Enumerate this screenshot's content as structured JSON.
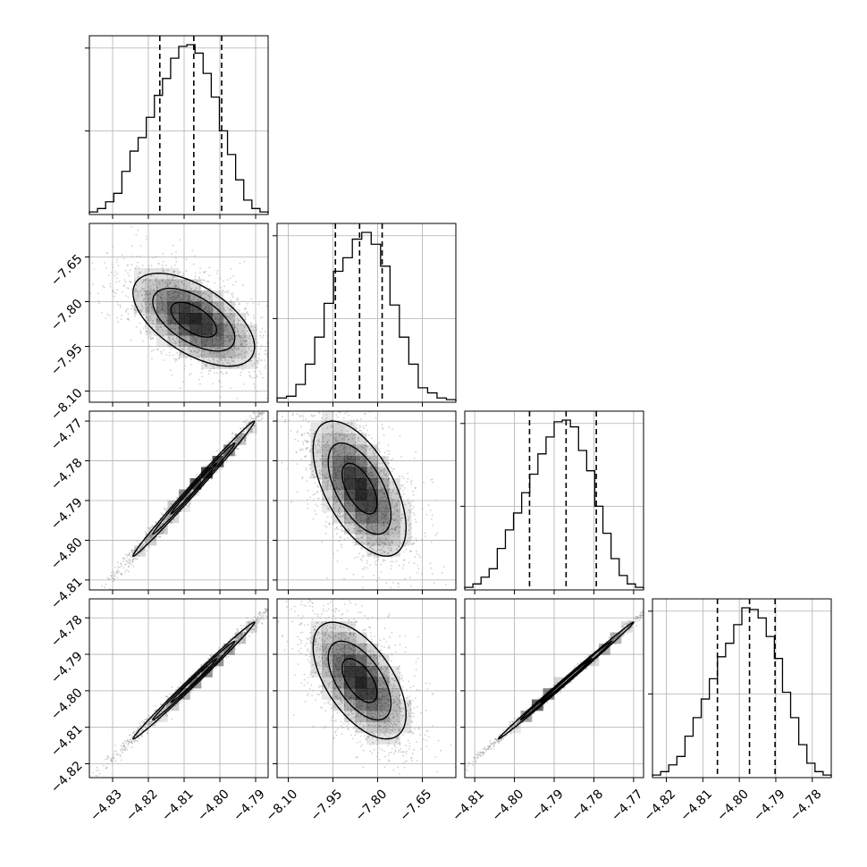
{
  "chart_data": {
    "type": "corner",
    "title": "",
    "n_params": 4,
    "grid": true,
    "quantile_lines": "dashed",
    "histogram_style": "step",
    "contour_levels": 3,
    "colors": {
      "line": "#000000",
      "grid": "#b0b0b0",
      "scatter": "#9a9a9a",
      "density": "#000000"
    },
    "params": [
      {
        "index": 0,
        "axis_range": [
          -4.8365,
          -4.7865
        ],
        "ticks": [
          -4.83,
          -4.82,
          -4.81,
          -4.8,
          -4.79
        ],
        "tick_labels": [
          "−4.83",
          "−4.82",
          "−4.81",
          "−4.80",
          "−4.79"
        ],
        "median": -4.8073,
        "q16": -4.8168,
        "q84": -4.7995
      },
      {
        "index": 1,
        "axis_range": [
          -8.1375,
          -7.5375
        ],
        "ticks": [
          -8.1,
          -7.95,
          -7.8,
          -7.65
        ],
        "tick_labels": [
          "−8.10",
          "−7.95",
          "−7.80",
          "−7.65"
        ],
        "median": -7.8606,
        "q16": -7.9418,
        "q84": -7.7848
      },
      {
        "index": 2,
        "axis_range": [
          -4.8125,
          -4.7675
        ],
        "ticks": [
          -4.81,
          -4.8,
          -4.79,
          -4.78,
          -4.77
        ],
        "tick_labels": [
          "−4.81",
          "−4.80",
          "−4.79",
          "−4.78",
          "−4.77"
        ],
        "median": -4.787,
        "q16": -4.7962,
        "q84": -4.7794
      },
      {
        "index": 3,
        "axis_range": [
          -4.8238,
          -4.7748
        ],
        "ticks": [
          -4.82,
          -4.81,
          -4.8,
          -4.79,
          -4.78
        ],
        "tick_labels": [
          "−4.82",
          "−4.81",
          "−4.80",
          "−4.79",
          "−4.78"
        ],
        "median": -4.7972,
        "q16": -4.806,
        "q84": -4.7902
      }
    ],
    "hist_tick_fractions": [
      0.5,
      1.0
    ],
    "histograms": [
      {
        "param": 0,
        "heights": [
          0.01,
          0.03,
          0.07,
          0.12,
          0.25,
          0.37,
          0.45,
          0.57,
          0.7,
          0.8,
          0.92,
          0.99,
          1.0,
          0.95,
          0.83,
          0.69,
          0.49,
          0.35,
          0.2,
          0.08,
          0.03,
          0.01
        ]
      },
      {
        "param": 1,
        "heights": [
          0.02,
          0.03,
          0.1,
          0.22,
          0.38,
          0.58,
          0.77,
          0.85,
          0.96,
          1.0,
          0.93,
          0.8,
          0.57,
          0.38,
          0.22,
          0.08,
          0.05,
          0.02,
          0.01
        ]
      },
      {
        "param": 2,
        "heights": [
          0.01,
          0.03,
          0.07,
          0.12,
          0.24,
          0.35,
          0.45,
          0.57,
          0.68,
          0.8,
          0.9,
          0.99,
          1.0,
          0.96,
          0.82,
          0.7,
          0.49,
          0.33,
          0.18,
          0.08,
          0.03,
          0.01
        ]
      },
      {
        "param": 3,
        "heights": [
          0.01,
          0.03,
          0.07,
          0.12,
          0.24,
          0.35,
          0.46,
          0.58,
          0.71,
          0.79,
          0.9,
          1.0,
          0.99,
          0.94,
          0.83,
          0.7,
          0.5,
          0.35,
          0.19,
          0.08,
          0.03,
          0.01
        ]
      }
    ],
    "pairs": [
      {
        "x": 0,
        "y": 1,
        "center": [
          -4.8073,
          -7.8606
        ],
        "corr": -0.58,
        "sx": 0.0085,
        "sy": 0.078
      },
      {
        "x": 0,
        "y": 2,
        "center": [
          -4.8073,
          -4.787
        ],
        "corr": 0.995,
        "sx": 0.0085,
        "sy": 0.0085
      },
      {
        "x": 1,
        "y": 2,
        "center": [
          -7.8606,
          -4.787
        ],
        "corr": -0.58,
        "sx": 0.078,
        "sy": 0.0085
      },
      {
        "x": 0,
        "y": 3,
        "center": [
          -4.8073,
          -4.7972
        ],
        "corr": 0.995,
        "sx": 0.0085,
        "sy": 0.008
      },
      {
        "x": 1,
        "y": 3,
        "center": [
          -7.8606,
          -4.7972
        ],
        "corr": -0.58,
        "sx": 0.078,
        "sy": 0.008
      },
      {
        "x": 2,
        "y": 3,
        "center": [
          -4.787,
          -4.7972
        ],
        "corr": 0.998,
        "sx": 0.0085,
        "sy": 0.008
      }
    ],
    "contour_sigma_scales": [
      0.75,
      1.35,
      2.0
    ]
  }
}
